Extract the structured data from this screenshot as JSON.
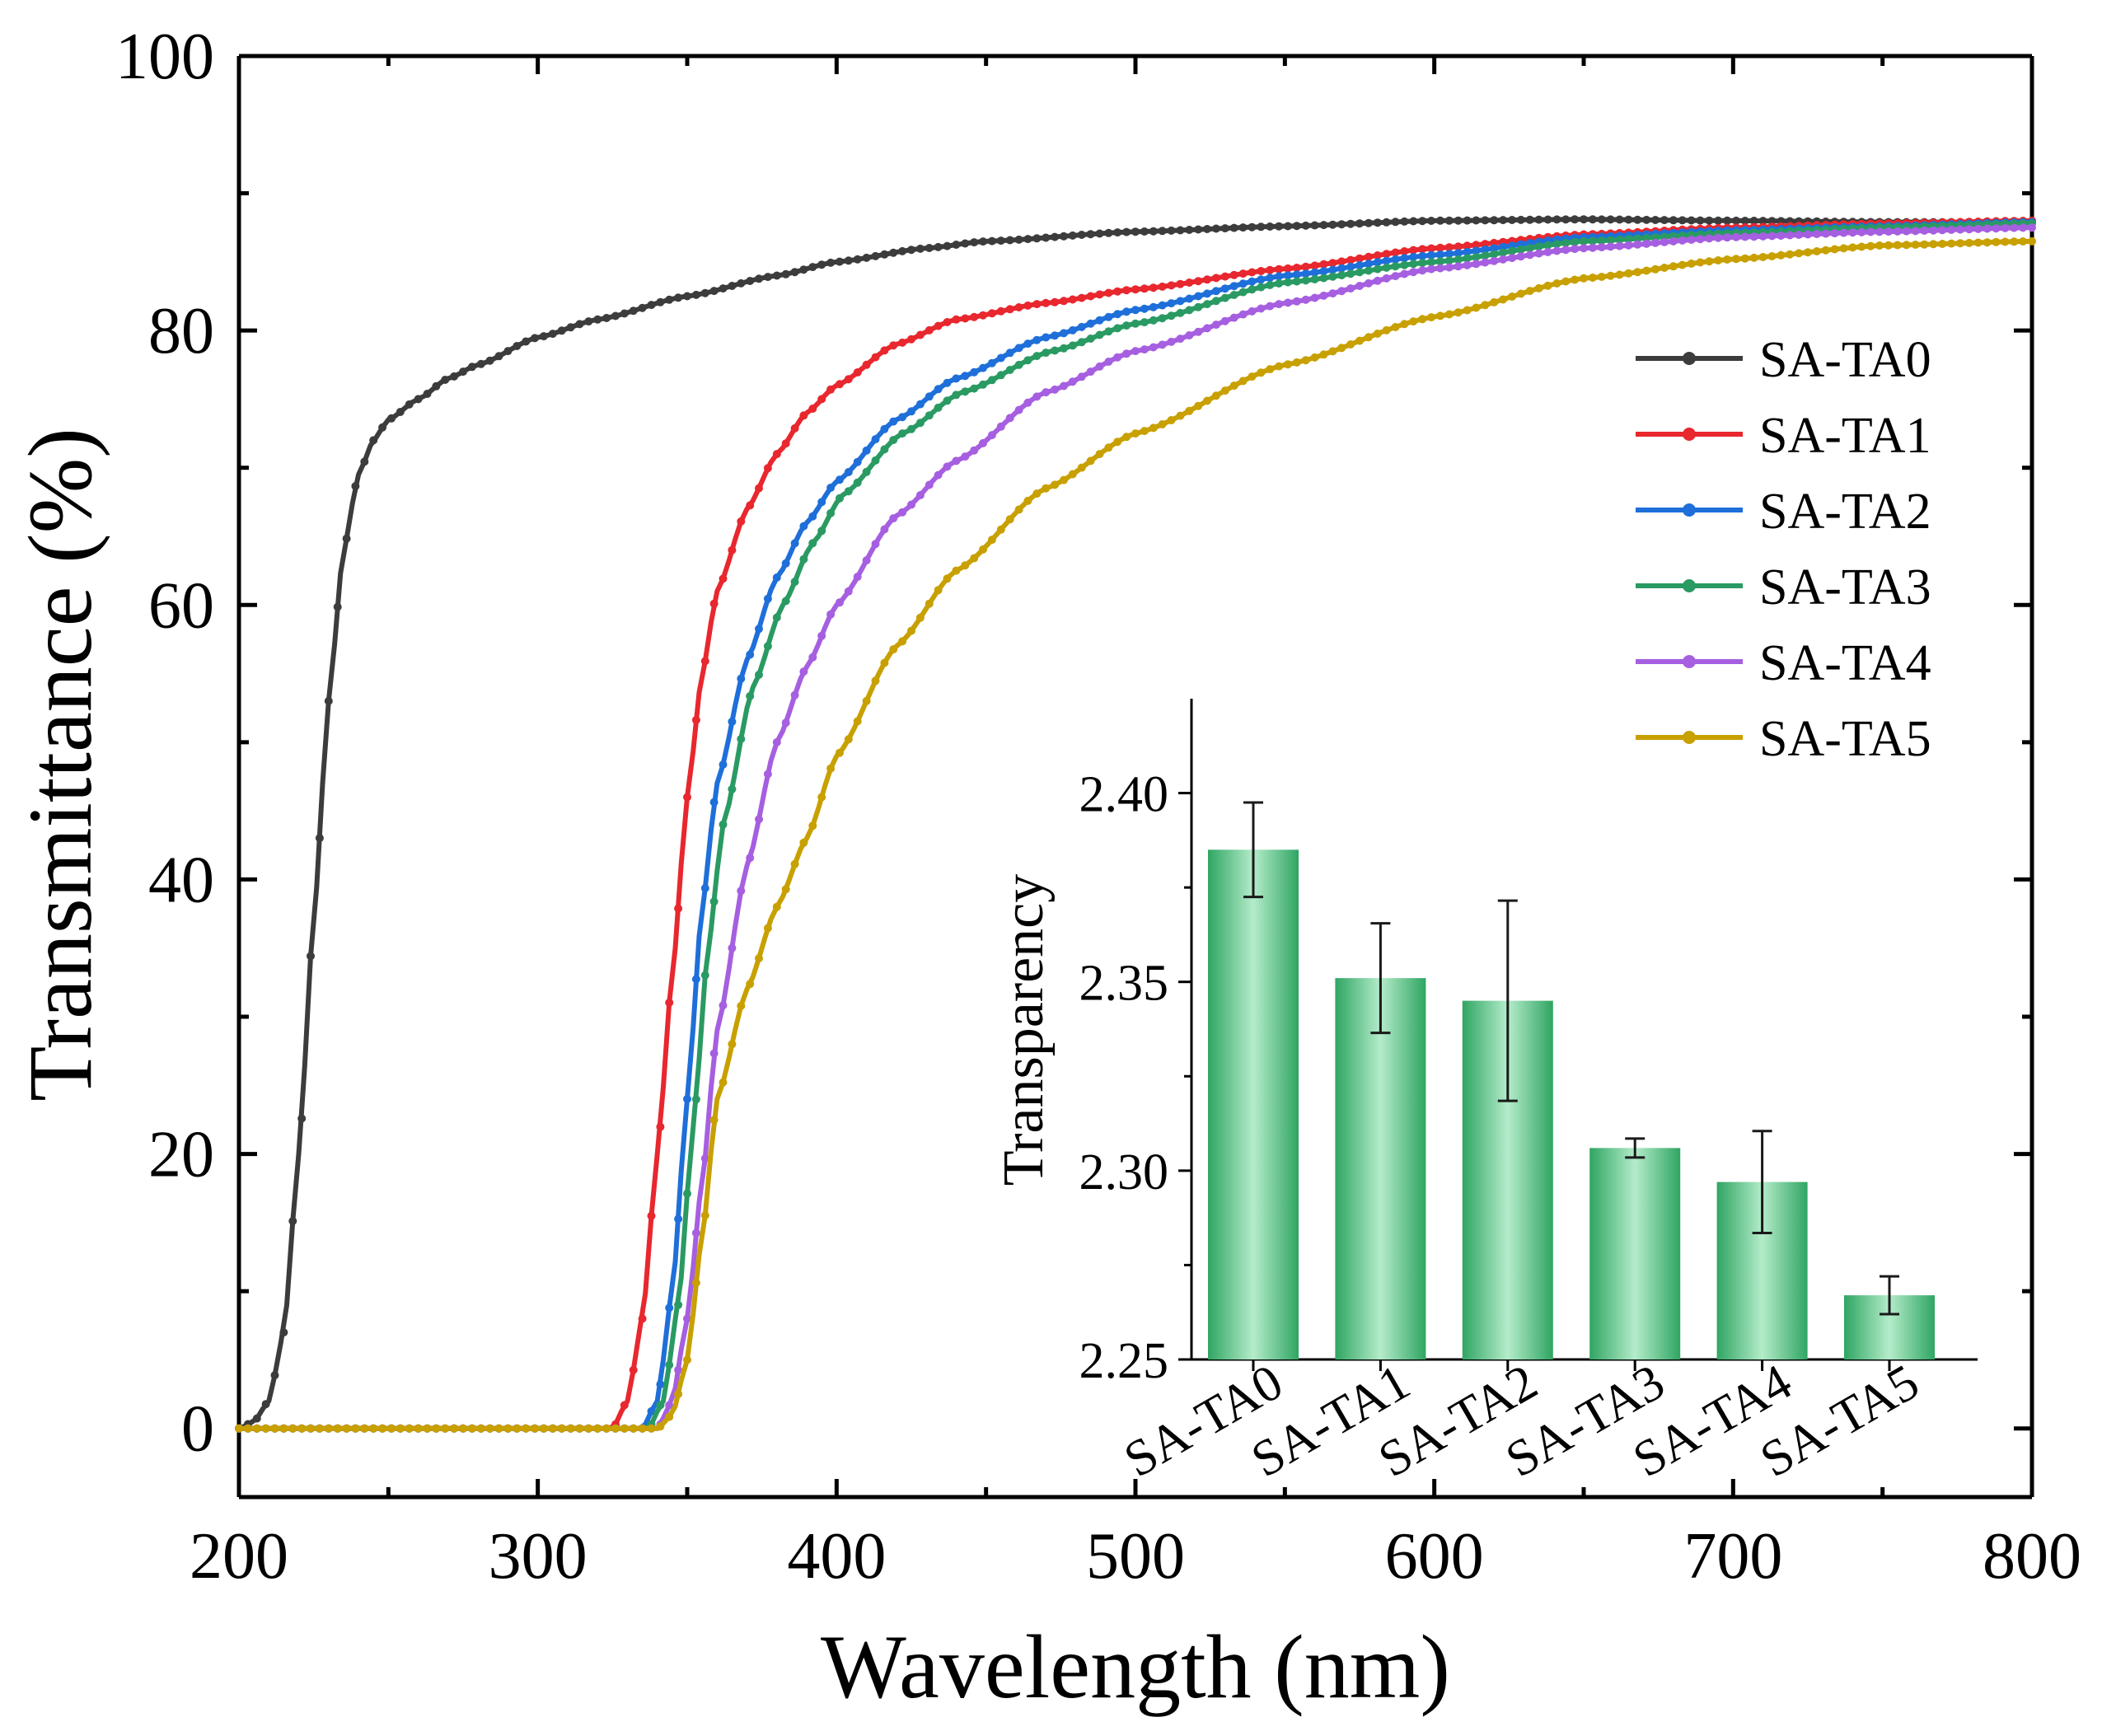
{
  "chart_data": [
    {
      "type": "line",
      "title": "",
      "xlabel": "Wavelength (nm)",
      "ylabel": "Transmittance (%)",
      "xlim": [
        200,
        800
      ],
      "ylim": [
        -5,
        100
      ],
      "xticks": [
        200,
        300,
        400,
        500,
        600,
        700,
        800
      ],
      "xtick_labels": [
        "200",
        "300",
        "400",
        "500",
        "600",
        "700",
        "800"
      ],
      "yticks": [
        0,
        20,
        40,
        60,
        80,
        100
      ],
      "ytick_labels": [
        "0",
        "20",
        "40",
        "60",
        "80",
        "100"
      ],
      "legend_position": "right",
      "markers": "circle",
      "series": [
        {
          "name": "SA-TA0",
          "color": "#3c3c3c",
          "points": [
            [
              200,
              0
            ],
            [
              205,
              0.5
            ],
            [
              210,
              2
            ],
            [
              215,
              7
            ],
            [
              220,
              20
            ],
            [
              225,
              37
            ],
            [
              230,
              53
            ],
            [
              235,
              64
            ],
            [
              240,
              69.5
            ],
            [
              245,
              72
            ],
            [
              250,
              73.5
            ],
            [
              260,
              75
            ],
            [
              270,
              76.5
            ],
            [
              280,
              77.5
            ],
            [
              300,
              79.5
            ],
            [
              320,
              80.8
            ],
            [
              350,
              82.5
            ],
            [
              380,
              84
            ],
            [
              400,
              85
            ],
            [
              430,
              86
            ],
            [
              450,
              86.5
            ],
            [
              500,
              87.2
            ],
            [
              550,
              87.6
            ],
            [
              600,
              88
            ],
            [
              650,
              88.1
            ],
            [
              700,
              88
            ],
            [
              750,
              87.9
            ],
            [
              800,
              87.9
            ]
          ]
        },
        {
          "name": "SA-TA1",
          "color": "#e8272e",
          "points": [
            [
              200,
              0
            ],
            [
              325,
              0
            ],
            [
              330,
              2
            ],
            [
              335,
              8
            ],
            [
              340,
              20
            ],
            [
              345,
              33
            ],
            [
              350,
              46
            ],
            [
              355,
              55
            ],
            [
              360,
              61
            ],
            [
              370,
              67
            ],
            [
              380,
              71
            ],
            [
              390,
              74
            ],
            [
              400,
              76
            ],
            [
              420,
              79
            ],
            [
              440,
              80.8
            ],
            [
              470,
              82
            ],
            [
              500,
              83
            ],
            [
              550,
              84.5
            ],
            [
              600,
              86
            ],
            [
              650,
              87
            ],
            [
              700,
              87.5
            ],
            [
              750,
              87.8
            ],
            [
              800,
              88
            ]
          ]
        },
        {
          "name": "SA-TA2",
          "color": "#1e6fd9",
          "points": [
            [
              200,
              0
            ],
            [
              335,
              0
            ],
            [
              340,
              2
            ],
            [
              345,
              10
            ],
            [
              350,
              24
            ],
            [
              355,
              38
            ],
            [
              360,
              47
            ],
            [
              370,
              56
            ],
            [
              380,
              62
            ],
            [
              390,
              66
            ],
            [
              400,
              69
            ],
            [
              420,
              73.5
            ],
            [
              440,
              76.5
            ],
            [
              470,
              79.5
            ],
            [
              500,
              81.5
            ],
            [
              550,
              84
            ],
            [
              600,
              85.5
            ],
            [
              650,
              86.8
            ],
            [
              700,
              87.3
            ],
            [
              750,
              87.6
            ],
            [
              800,
              87.9
            ]
          ]
        },
        {
          "name": "SA-TA3",
          "color": "#2a9a63",
          "points": [
            [
              200,
              0
            ],
            [
              337,
              0
            ],
            [
              342,
              2
            ],
            [
              347,
              9
            ],
            [
              352,
              22
            ],
            [
              357,
              35
            ],
            [
              362,
              44
            ],
            [
              372,
              54
            ],
            [
              382,
              60
            ],
            [
              392,
              64.5
            ],
            [
              402,
              68
            ],
            [
              422,
              72.5
            ],
            [
              442,
              75.5
            ],
            [
              472,
              78.5
            ],
            [
              500,
              80.5
            ],
            [
              550,
              83.5
            ],
            [
              600,
              85
            ],
            [
              650,
              86.5
            ],
            [
              700,
              87.1
            ],
            [
              750,
              87.5
            ],
            [
              800,
              87.8
            ]
          ]
        },
        {
          "name": "SA-TA4",
          "color": "#a65fe0",
          "points": [
            [
              200,
              0
            ],
            [
              340,
              0
            ],
            [
              345,
              2
            ],
            [
              350,
              8
            ],
            [
              355,
              18
            ],
            [
              360,
              29
            ],
            [
              370,
              41
            ],
            [
              380,
              50
            ],
            [
              390,
              55.5
            ],
            [
              400,
              60
            ],
            [
              420,
              66.5
            ],
            [
              440,
              70.5
            ],
            [
              470,
              75.5
            ],
            [
              500,
              78.5
            ],
            [
              550,
              82
            ],
            [
              600,
              84.5
            ],
            [
              650,
              86
            ],
            [
              700,
              86.8
            ],
            [
              750,
              87.2
            ],
            [
              800,
              87.5
            ]
          ]
        },
        {
          "name": "SA-TA5",
          "color": "#c8a000",
          "points": [
            [
              200,
              0
            ],
            [
              340,
              0
            ],
            [
              345,
              1
            ],
            [
              350,
              5
            ],
            [
              355,
              14
            ],
            [
              360,
              24
            ],
            [
              370,
              32
            ],
            [
              380,
              38
            ],
            [
              390,
              43
            ],
            [
              400,
              49
            ],
            [
              420,
              57
            ],
            [
              440,
              62.5
            ],
            [
              470,
              68.5
            ],
            [
              500,
              72.5
            ],
            [
              550,
              77.5
            ],
            [
              600,
              81
            ],
            [
              650,
              83.8
            ],
            [
              700,
              85.2
            ],
            [
              750,
              86.2
            ],
            [
              800,
              86.5
            ]
          ]
        }
      ]
    },
    {
      "type": "bar",
      "title": "",
      "xlabel": "",
      "ylabel": "Transparency",
      "ylim": [
        2.25,
        2.425
      ],
      "yticks": [
        2.25,
        2.3,
        2.35,
        2.4
      ],
      "ytick_labels": [
        "2.25",
        "2.30",
        "2.35",
        "2.40"
      ],
      "categories": [
        "SA-TA0",
        "SA-TA1",
        "SA-TA2",
        "SA-TA3",
        "SA-TA4",
        "SA-TA5"
      ],
      "values": [
        2.385,
        2.351,
        2.345,
        2.306,
        2.297,
        2.267
      ],
      "errors": [
        0.0125,
        0.0145,
        0.0265,
        0.0025,
        0.0135,
        0.005
      ],
      "bar_color": "#3fb473",
      "bar_highlight": "#b4ecca"
    }
  ]
}
